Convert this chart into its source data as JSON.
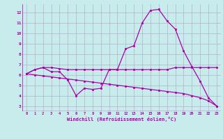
{
  "background_color": "#c8ecec",
  "grid_color": "#b0b0cc",
  "line_color": "#aa00aa",
  "xlabel": "Windchill (Refroidissement éolien,°C)",
  "xlim": [
    -0.5,
    23.5
  ],
  "ylim": [
    2.5,
    12.8
  ],
  "yticks": [
    3,
    4,
    5,
    6,
    7,
    8,
    9,
    10,
    11,
    12
  ],
  "xticks": [
    0,
    1,
    2,
    3,
    4,
    5,
    6,
    7,
    8,
    9,
    10,
    11,
    12,
    13,
    14,
    15,
    16,
    17,
    18,
    19,
    20,
    21,
    22,
    23
  ],
  "series1_x": [
    0,
    1,
    2,
    3,
    4,
    5,
    6,
    7,
    8,
    9,
    10,
    11,
    12,
    13,
    14,
    15,
    16,
    17,
    18,
    19,
    20,
    21,
    22,
    23
  ],
  "series1_y": [
    6.1,
    6.5,
    6.7,
    6.3,
    6.3,
    5.5,
    4.0,
    4.7,
    4.6,
    4.7,
    6.5,
    6.5,
    8.5,
    8.8,
    11.0,
    12.2,
    12.3,
    11.2,
    10.4,
    8.3,
    6.8,
    5.4,
    3.8,
    3.0
  ],
  "series2_x": [
    0,
    1,
    2,
    3,
    4,
    5,
    6,
    7,
    8,
    9,
    10,
    11,
    12,
    13,
    14,
    15,
    16,
    17,
    18,
    19,
    20,
    21,
    22,
    23
  ],
  "series2_y": [
    6.1,
    6.5,
    6.7,
    6.7,
    6.6,
    6.5,
    6.5,
    6.5,
    6.5,
    6.5,
    6.5,
    6.5,
    6.5,
    6.5,
    6.5,
    6.5,
    6.5,
    6.5,
    6.7,
    6.7,
    6.7,
    6.7,
    6.7,
    6.7
  ],
  "series3_x": [
    0,
    1,
    2,
    3,
    4,
    5,
    6,
    7,
    8,
    9,
    10,
    11,
    12,
    13,
    14,
    15,
    16,
    17,
    18,
    19,
    20,
    21,
    22,
    23
  ],
  "series3_y": [
    6.1,
    6.0,
    5.9,
    5.8,
    5.7,
    5.6,
    5.5,
    5.4,
    5.3,
    5.2,
    5.1,
    5.0,
    4.9,
    4.8,
    4.7,
    4.6,
    4.5,
    4.4,
    4.3,
    4.2,
    4.0,
    3.8,
    3.5,
    3.0
  ]
}
